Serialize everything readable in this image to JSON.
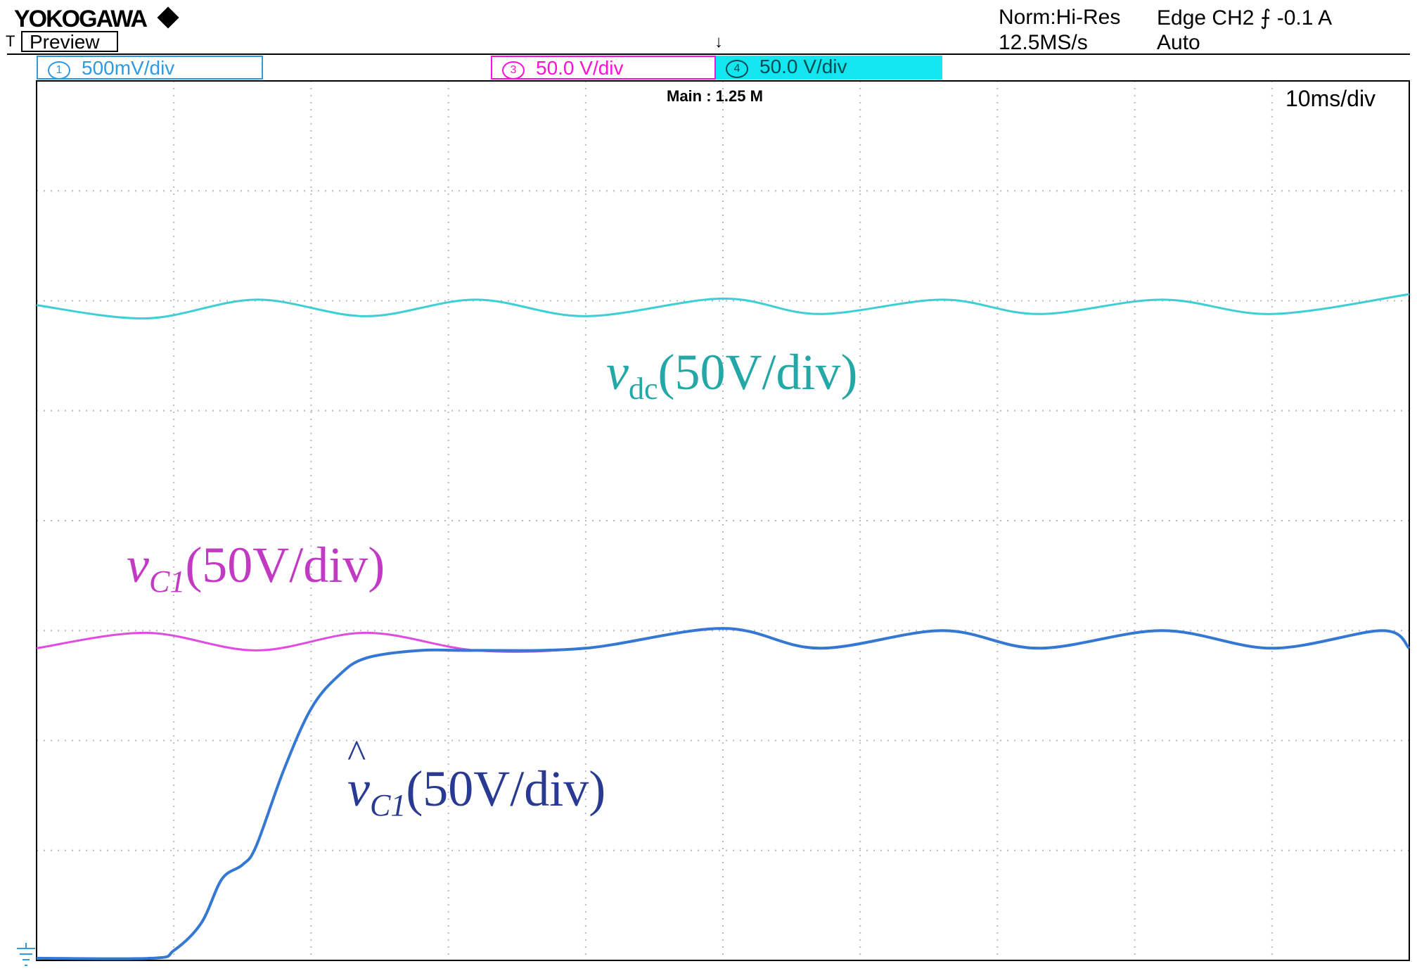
{
  "header": {
    "brand": "YOKOGAWA",
    "trigger_marker": "T",
    "preview_label": "Preview",
    "acquisition_mode": "Norm:Hi-Res",
    "sample_rate": "12.5MS/s",
    "trigger_info": "Edge CH2 ⨍ -0.1 A",
    "trigger_mode": "Auto"
  },
  "channels": [
    {
      "number": "1",
      "scale": "500mV/div",
      "color": "#2f9adf"
    },
    {
      "number": "3",
      "scale": "50.0 V/div",
      "color": "#ff10d8"
    },
    {
      "number": "4",
      "scale": "50.0 V/div",
      "color": "#14e6ef"
    }
  ],
  "record_length": "Main : 1.25 M",
  "timebase": "10ms/div",
  "labels": {
    "vdc": {
      "symbol": "v",
      "subscript": "dc",
      "unit": "(50V/div)",
      "color": "#24a7a7"
    },
    "vc1": {
      "symbol": "v",
      "subscript": "C1",
      "unit": "(50V/div)",
      "color": "#c23ac3"
    },
    "vc1_hat": {
      "hat": "^",
      "symbol": "v",
      "subscript": "C1",
      "unit": "(50V/div)",
      "color": "#283a91"
    }
  },
  "chart_data": {
    "type": "line",
    "x_unit": "ms",
    "x_divisions": 10,
    "y_divisions": 8,
    "grid": true,
    "xlim": [
      0,
      100
    ],
    "series": [
      {
        "name": "vdc(50V/div)",
        "color": "#3ecfd5",
        "offset_div": 5.96,
        "points": [
          [
            0,
            0
          ],
          [
            8,
            -0.12
          ],
          [
            16,
            0.05
          ],
          [
            24,
            -0.1
          ],
          [
            32,
            0.05
          ],
          [
            40,
            -0.1
          ],
          [
            50,
            0.06
          ],
          [
            57,
            -0.08
          ],
          [
            66,
            0.05
          ],
          [
            73,
            -0.08
          ],
          [
            82,
            0.05
          ],
          [
            90,
            -0.08
          ],
          [
            100,
            0.1
          ]
        ]
      },
      {
        "name": "vC1(50V/div)",
        "color": "#e04ce0",
        "offset_div": 2.84,
        "points": [
          [
            0,
            0
          ],
          [
            8,
            0.14
          ],
          [
            16,
            -0.02
          ],
          [
            24,
            0.14
          ],
          [
            32,
            -0.02
          ],
          [
            40,
            0
          ],
          [
            50,
            0.18
          ],
          [
            57,
            0
          ],
          [
            66,
            0.16
          ],
          [
            73,
            0
          ],
          [
            82,
            0.16
          ],
          [
            90,
            0
          ],
          [
            98,
            0.16
          ],
          [
            100,
            0
          ]
        ]
      },
      {
        "name": "v̂C1(50V/div)",
        "color": "#3478d4",
        "offset_div": 0.02,
        "points": [
          [
            0,
            0
          ],
          [
            8.4,
            0
          ],
          [
            10,
            0.07
          ],
          [
            12,
            0.32
          ],
          [
            13.5,
            0.72
          ],
          [
            15,
            0.85
          ],
          [
            16,
            1.02
          ],
          [
            18,
            1.71
          ],
          [
            20,
            2.27
          ],
          [
            22,
            2.57
          ],
          [
            24,
            2.73
          ],
          [
            28,
            2.8
          ],
          [
            32,
            2.8
          ],
          [
            40,
            2.82
          ],
          [
            50,
            3.0
          ],
          [
            57,
            2.82
          ],
          [
            66,
            2.98
          ],
          [
            73,
            2.82
          ],
          [
            82,
            2.98
          ],
          [
            90,
            2.82
          ],
          [
            98,
            2.98
          ],
          [
            100,
            2.82
          ]
        ]
      }
    ]
  }
}
